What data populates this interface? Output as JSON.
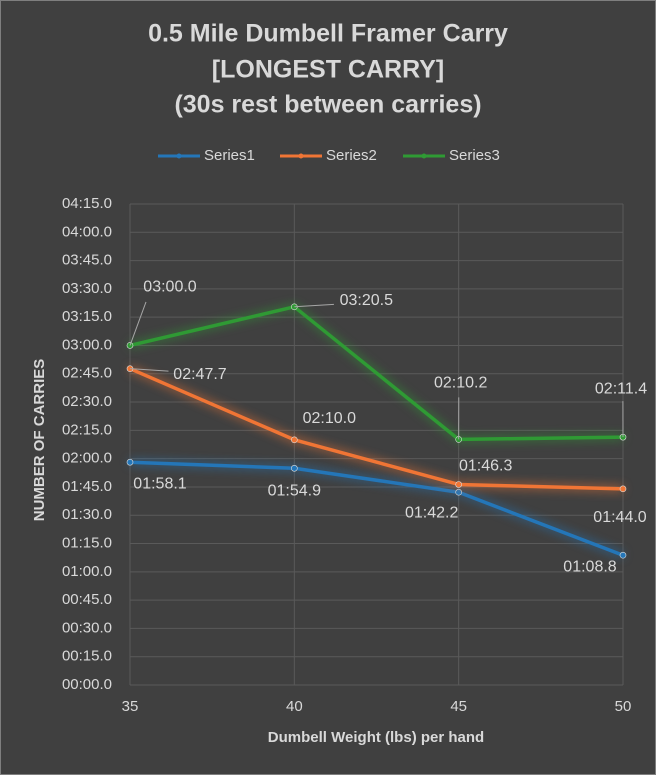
{
  "chart_data": {
    "type": "line",
    "title": [
      "0.5 Mile Dumbell Framer Carry",
      "[LONGEST CARRY]",
      "(30s rest between carries)"
    ],
    "x_label": "Dumbell Weight (lbs) per hand",
    "y_label": "NUMBER OF CARRIES",
    "x": [
      35,
      40,
      45,
      50
    ],
    "xlim": [
      35,
      50
    ],
    "xticks": [
      35,
      40,
      45,
      50
    ],
    "ylim": [
      0,
      255
    ],
    "yticks": [
      {
        "value": 0,
        "label": "00:00.0"
      },
      {
        "value": 15,
        "label": "00:15.0"
      },
      {
        "value": 30,
        "label": "00:30.0"
      },
      {
        "value": 45,
        "label": "00:45.0"
      },
      {
        "value": 60,
        "label": "01:00.0"
      },
      {
        "value": 75,
        "label": "01:15.0"
      },
      {
        "value": 90,
        "label": "01:30.0"
      },
      {
        "value": 105,
        "label": "01:45.0"
      },
      {
        "value": 120,
        "label": "02:00.0"
      },
      {
        "value": 135,
        "label": "02:15.0"
      },
      {
        "value": 150,
        "label": "02:30.0"
      },
      {
        "value": 165,
        "label": "02:45.0"
      },
      {
        "value": 180,
        "label": "03:00.0"
      },
      {
        "value": 195,
        "label": "03:15.0"
      },
      {
        "value": 210,
        "label": "03:30.0"
      },
      {
        "value": 225,
        "label": "03:45.0"
      },
      {
        "value": 240,
        "label": "04:00.0"
      },
      {
        "value": 255,
        "label": "04:15.0"
      }
    ],
    "grid": true,
    "legend": "top",
    "series": [
      {
        "name": "Series1",
        "color": "#2476b8",
        "values": [
          118.1,
          114.9,
          102.2,
          68.8
        ],
        "value_labels": [
          "01:58.1",
          "01:54.9",
          "01:42.2",
          "01:08.8"
        ]
      },
      {
        "name": "Series2",
        "color": "#f07535",
        "values": [
          167.7,
          130.0,
          106.3,
          104.0
        ],
        "value_labels": [
          "02:47.7",
          "02:10.0",
          "01:46.3",
          "01:44.0"
        ]
      },
      {
        "name": "Series3",
        "color": "#2f9a34",
        "values": [
          180.0,
          200.5,
          130.2,
          131.4
        ],
        "value_labels": [
          "03:00.0",
          "03:20.5",
          "02:10.2",
          "02:11.4"
        ]
      }
    ]
  }
}
